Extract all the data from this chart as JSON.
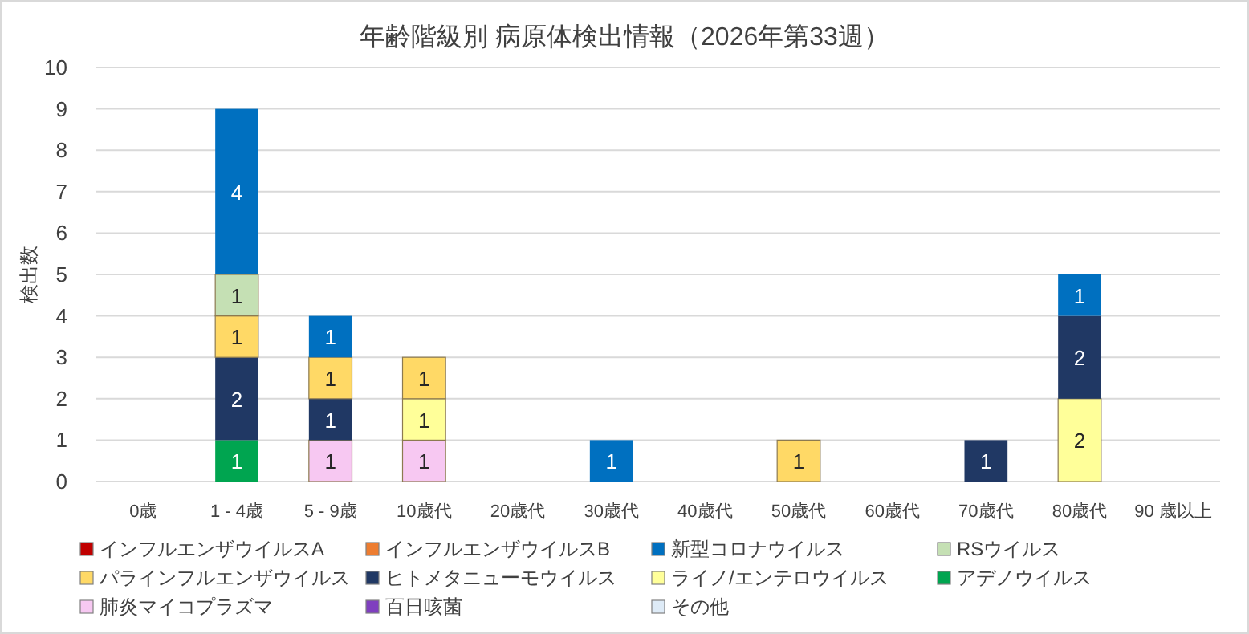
{
  "chart_data": {
    "type": "bar",
    "title": "年齢階級別 病原体検出情報（2026年第33週）",
    "ylabel": "検出数",
    "stacked": true,
    "data_labels": true,
    "grid": "y",
    "legend": "bottom",
    "categories": [
      "0歳",
      "1 - 4歳",
      "5 - 9歳",
      "10歳代",
      "20歳代",
      "30歳代",
      "40歳代",
      "50歳代",
      "60歳代",
      "70歳代",
      "80歳代",
      "90 歳以上"
    ],
    "ylim": [
      0,
      10
    ],
    "yticks": [
      0,
      1,
      2,
      3,
      4,
      5,
      6,
      7,
      8,
      9,
      10
    ],
    "series": [
      {
        "name": "その他",
        "color": "#deebf7",
        "values": [
          null,
          null,
          null,
          null,
          null,
          null,
          null,
          null,
          null,
          null,
          null,
          null
        ]
      },
      {
        "name": "百日咳菌",
        "color": "#7f3fbf",
        "values": [
          null,
          null,
          null,
          null,
          null,
          null,
          null,
          null,
          null,
          null,
          null,
          null
        ]
      },
      {
        "name": "肺炎マイコプラズマ",
        "color": "#f7c8f2",
        "values": [
          null,
          null,
          1,
          1,
          null,
          null,
          null,
          null,
          null,
          null,
          null,
          null
        ]
      },
      {
        "name": "アデノウイルス",
        "color": "#00a550",
        "values": [
          null,
          1,
          null,
          null,
          null,
          null,
          null,
          null,
          null,
          null,
          null,
          null
        ]
      },
      {
        "name": "ライノ/エンテロウイルス",
        "color": "#ffff99",
        "values": [
          null,
          null,
          null,
          1,
          null,
          null,
          null,
          null,
          null,
          null,
          2,
          null
        ]
      },
      {
        "name": "ヒトメタニューモウイルス",
        "color": "#203864",
        "values": [
          null,
          2,
          1,
          null,
          null,
          null,
          null,
          null,
          null,
          1,
          2,
          null
        ]
      },
      {
        "name": "パラインフルエンザウイルス",
        "color": "#ffd966",
        "values": [
          null,
          1,
          1,
          1,
          null,
          null,
          null,
          1,
          null,
          null,
          null,
          null
        ]
      },
      {
        "name": "RSウイルス",
        "color": "#c5e0b4",
        "values": [
          null,
          1,
          null,
          null,
          null,
          null,
          null,
          null,
          null,
          null,
          null,
          null
        ]
      },
      {
        "name": "新型コロナウイルス",
        "color": "#0070c0",
        "values": [
          null,
          4,
          1,
          null,
          null,
          1,
          null,
          null,
          null,
          null,
          1,
          null
        ]
      },
      {
        "name": "インフルエンザウイルスB",
        "color": "#ed7d31",
        "values": [
          null,
          null,
          null,
          null,
          null,
          null,
          null,
          null,
          null,
          null,
          null,
          null
        ]
      },
      {
        "name": "インフルエンザウイルスA",
        "color": "#c00000",
        "values": [
          null,
          null,
          null,
          null,
          null,
          null,
          null,
          null,
          null,
          null,
          null,
          null
        ]
      }
    ]
  }
}
